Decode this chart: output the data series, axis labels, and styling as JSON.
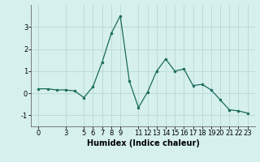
{
  "xlabel": "Humidex (Indice chaleur)",
  "x": [
    0,
    1,
    2,
    3,
    4,
    5,
    6,
    7,
    8,
    9,
    10,
    11,
    12,
    13,
    14,
    15,
    16,
    17,
    18,
    19,
    20,
    21,
    22,
    23
  ],
  "y": [
    0.2,
    0.2,
    0.15,
    0.15,
    0.1,
    -0.2,
    0.3,
    1.4,
    2.7,
    3.5,
    0.55,
    -0.65,
    0.05,
    1.0,
    1.55,
    1.0,
    1.1,
    0.35,
    0.4,
    0.15,
    -0.3,
    -0.75,
    -0.8,
    -0.9
  ],
  "line_color": "#1a6b5a",
  "marker": "o",
  "marker_size": 2.0,
  "linewidth": 0.9,
  "bg_color": "#d6f0ee",
  "grid_color": "#b8d8d4",
  "ylim": [
    -1.5,
    4.0
  ],
  "yticks": [
    -1,
    0,
    1,
    2,
    3
  ],
  "xticks": [
    0,
    3,
    5,
    6,
    7,
    8,
    9,
    11,
    12,
    13,
    14,
    15,
    16,
    17,
    18,
    19,
    20,
    21,
    22,
    23
  ],
  "tick_fontsize": 6,
  "xlabel_fontsize": 7
}
